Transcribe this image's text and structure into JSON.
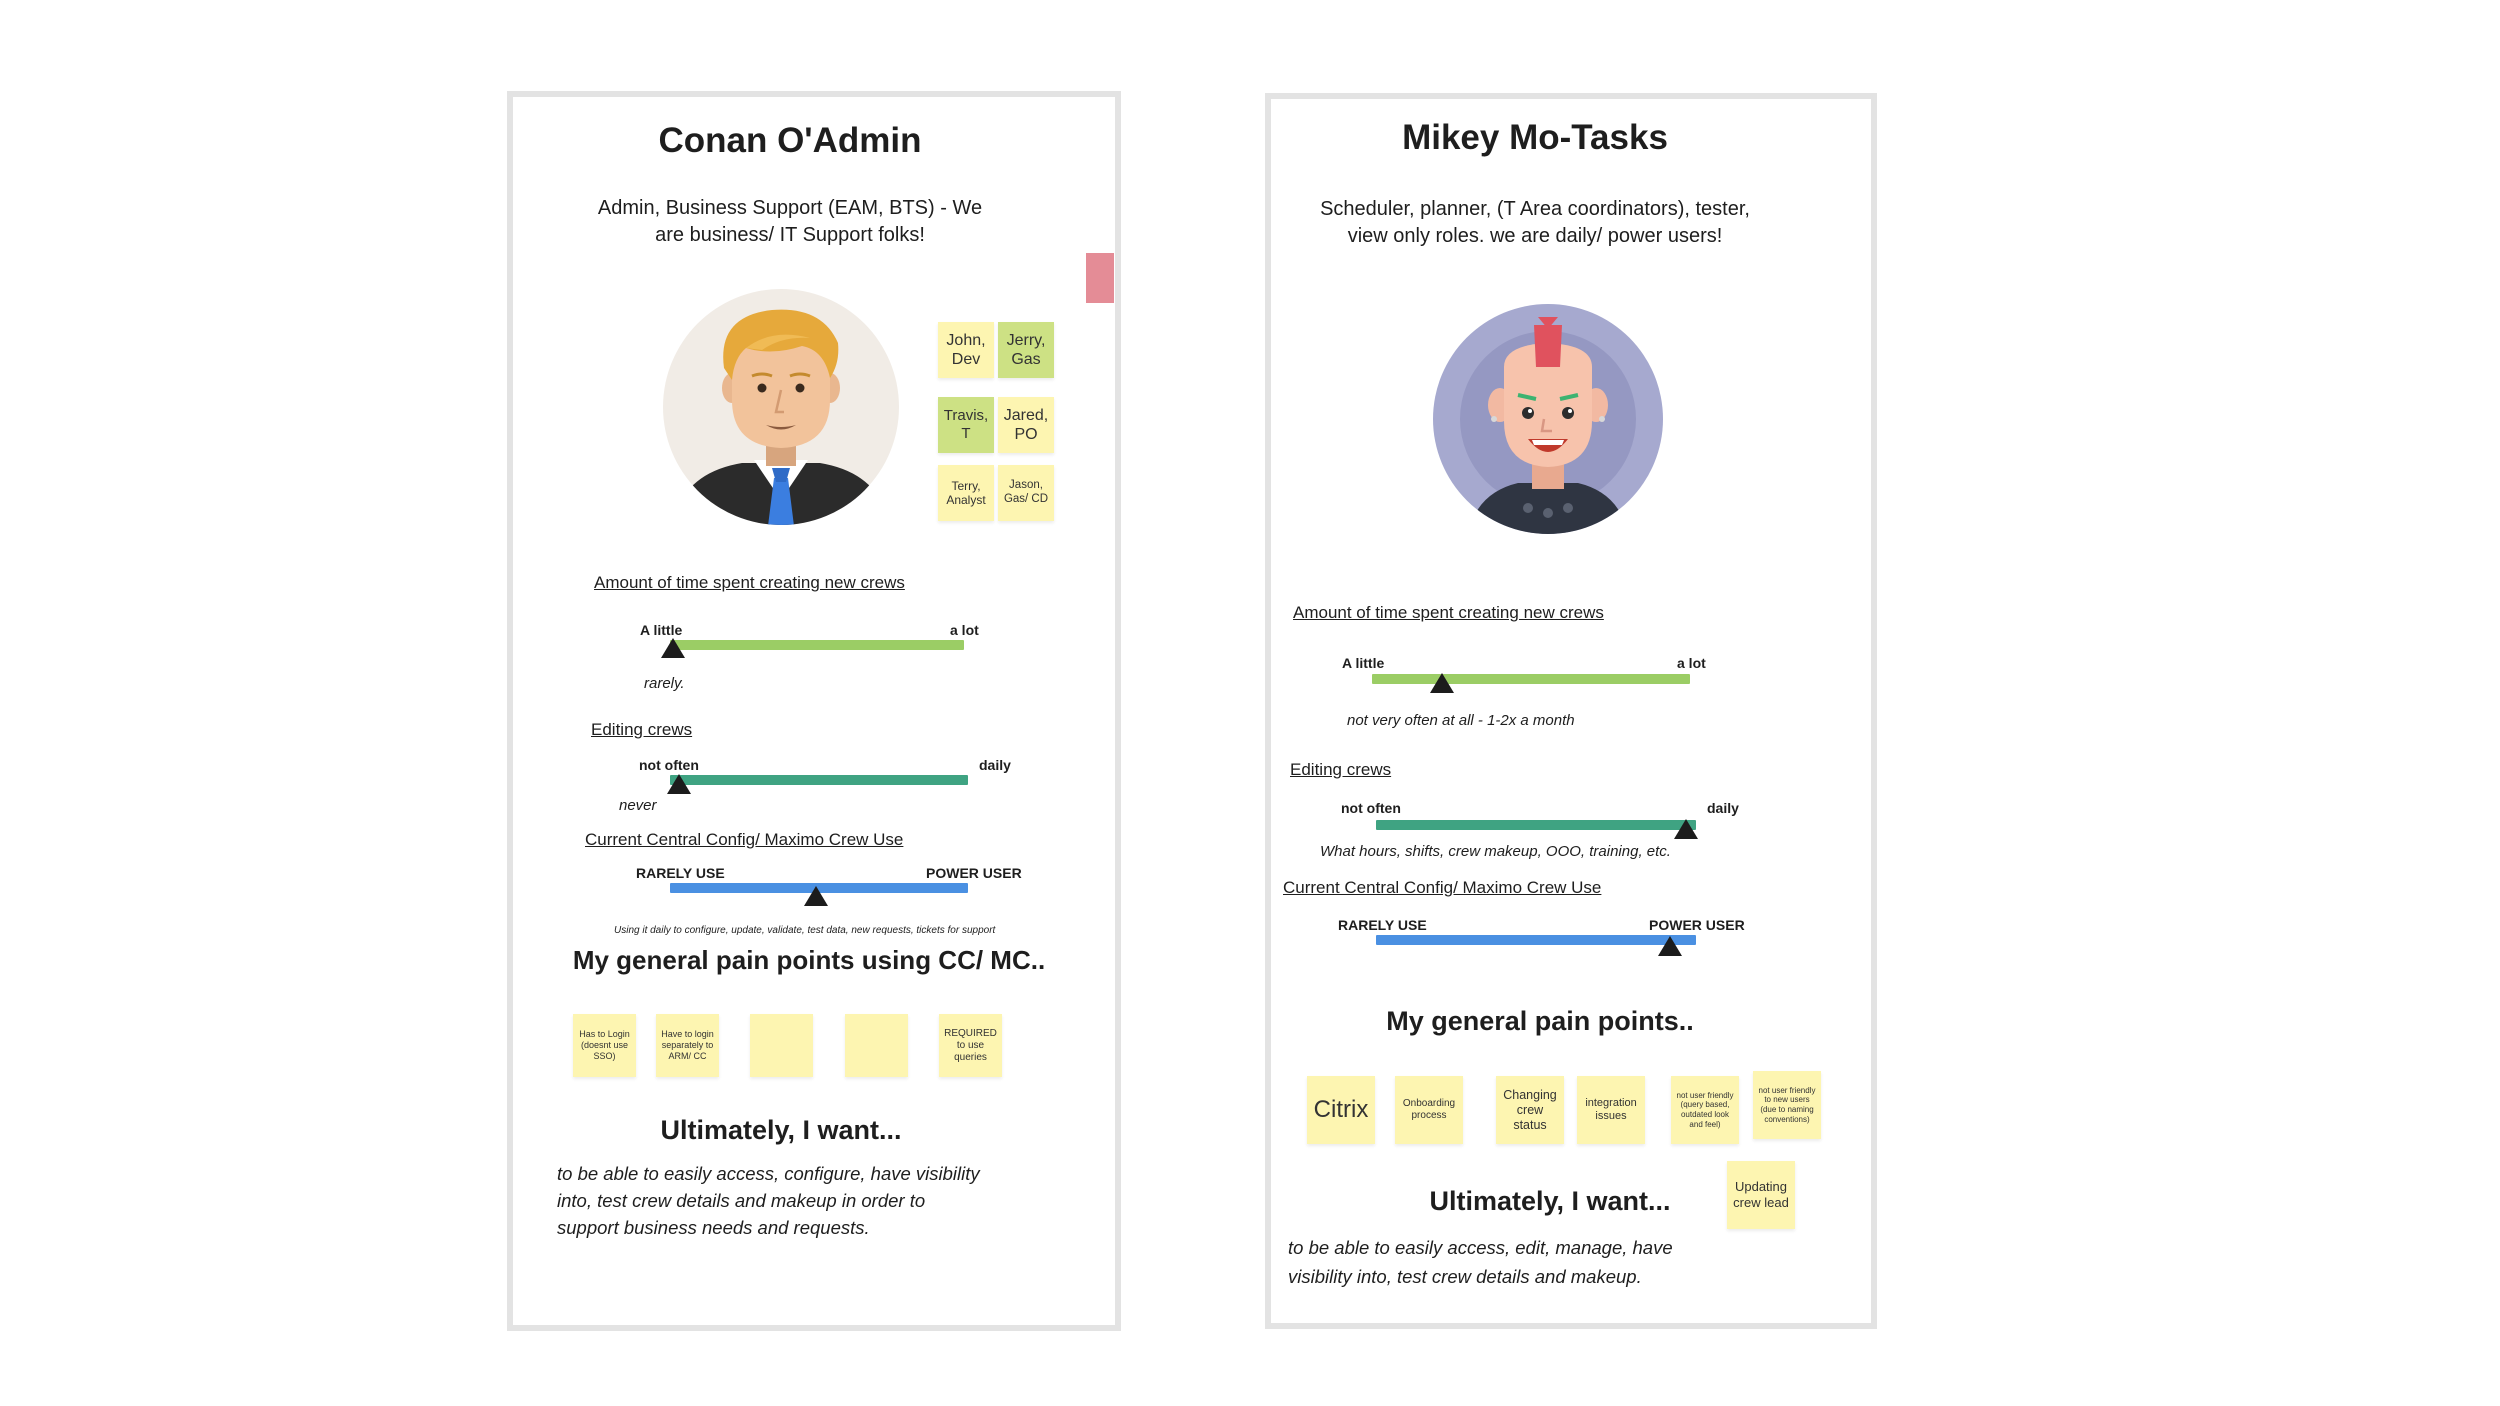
{
  "colors": {
    "green_bar": "#9bcd65",
    "teal_bar": "#3fa382",
    "blue_bar": "#4a90e2",
    "sticky_yellow": "#fdf5b1",
    "sticky_green": "#cde184",
    "flag_pink": "#e48c96"
  },
  "persona1": {
    "name": "Conan O'Admin",
    "role_line1": "Admin, Business Support (EAM, BTS) - We",
    "role_line2": "are business/ IT Support folks!",
    "avatar_icon": "businessman-avatar-icon",
    "team": [
      {
        "line1": "John,",
        "line2": "Dev"
      },
      {
        "line1": "Jerry,",
        "line2": "Gas"
      },
      {
        "line1": "Travis,",
        "line2": "T"
      },
      {
        "line1": "Jared,",
        "line2": "PO"
      },
      {
        "line1": "Terry,",
        "line2": "Analyst"
      },
      {
        "line1": "Jason,",
        "line2": "Gas/ CD"
      }
    ],
    "scales": {
      "time_creating": {
        "label": "Amount of time spent creating new crews",
        "low": "A little",
        "high": "a lot",
        "note": "rarely.",
        "value": 0.01
      },
      "editing": {
        "label": "Editing crews",
        "low": "not often",
        "high": "daily",
        "note": "never",
        "value": 0.03
      },
      "cc_use": {
        "label": "Current Central Config/ Maximo Crew Use",
        "low": "RARELY USE",
        "high": "POWER USER",
        "note": "Using it daily to configure, update, validate, test data, new requests, tickets for support",
        "value": 0.49
      }
    },
    "pain_title": "My general pain points using CC/ MC..",
    "pain_points": [
      "Has to Login (doesnt use SSO)",
      "Have to login separately to ARM/ CC",
      "",
      "",
      "REQUIRED to use queries"
    ],
    "want_title": "Ultimately, I want...",
    "want_lines": [
      "to be able to easily access, configure, have visibility",
      "into, test crew details and makeup in order to",
      "support business needs and requests."
    ]
  },
  "persona2": {
    "name": "Mikey Mo-Tasks",
    "role_line1": "Scheduler, planner, (T Area coordinators), tester,",
    "role_line2": "view only roles. we are daily/ power users!",
    "avatar_icon": "mohawk-punk-avatar-icon",
    "scales": {
      "time_creating": {
        "label": "Amount of time spent creating new crews",
        "low": "A little",
        "high": "a lot",
        "note": "not very often at all - 1-2x a month",
        "value": 0.22
      },
      "editing": {
        "label": "Editing crews",
        "low": "not often",
        "high": "daily",
        "note": "What hours, shifts, crew makeup, OOO, training, etc.",
        "value": 0.97
      },
      "cc_use": {
        "label": "Current Central Config/ Maximo Crew Use",
        "low": "RARELY USE",
        "high": "POWER USER",
        "note": "",
        "value": 0.92
      }
    },
    "pain_title": "My general pain points..",
    "pain_points": [
      "Citrix",
      "Onboarding process",
      "Changing crew status",
      "integration issues",
      "not user friendly (query based, outdated look and feel)",
      "not user friendly to new users (due to naming conventions)",
      "Updating crew lead"
    ],
    "want_title": "Ultimately, I want...",
    "want_lines": [
      "to be able to easily access, edit, manage, have",
      "visibility into, test crew details and makeup."
    ]
  }
}
